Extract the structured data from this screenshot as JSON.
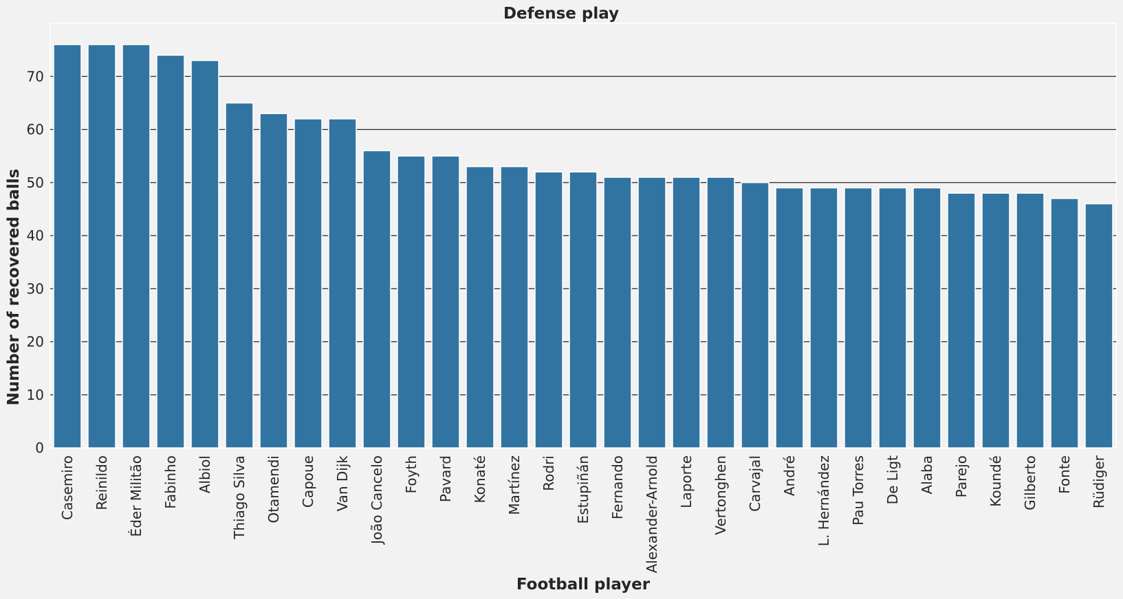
{
  "chart_data": {
    "type": "bar",
    "title": "Defense play",
    "xlabel": "Football player",
    "ylabel": "Number of recovered balls",
    "categories": [
      "Casemiro",
      "Reinildo",
      "Éder Militão",
      "Fabinho",
      "Albiol",
      "Thiago Silva",
      "Otamendi",
      "Capoue",
      "Van Dijk",
      "João Cancelo",
      "Foyth",
      "Pavard",
      "Konaté",
      "Martínez",
      "Rodri",
      "Estupiñán",
      "Fernando",
      "Alexander-Arnold",
      "Laporte",
      "Vertonghen",
      "Carvajal",
      "André",
      "L. Hernández",
      "Pau Torres",
      "De Ligt",
      "Alaba",
      "Parejo",
      "Koundé",
      "Gilberto",
      "Fonte",
      "Rüdiger"
    ],
    "values": [
      76,
      76,
      76,
      74,
      73,
      65,
      63,
      62,
      62,
      56,
      55,
      55,
      53,
      53,
      52,
      52,
      51,
      51,
      51,
      51,
      50,
      49,
      49,
      49,
      49,
      49,
      48,
      48,
      48,
      47,
      46
    ],
    "ylim": [
      0,
      80
    ],
    "yticks": [
      0,
      10,
      20,
      30,
      40,
      50,
      60,
      70
    ],
    "grid": true,
    "colors": {
      "bar": "#3274a1",
      "background": "#f2f2f2",
      "grid": "#262626"
    }
  }
}
